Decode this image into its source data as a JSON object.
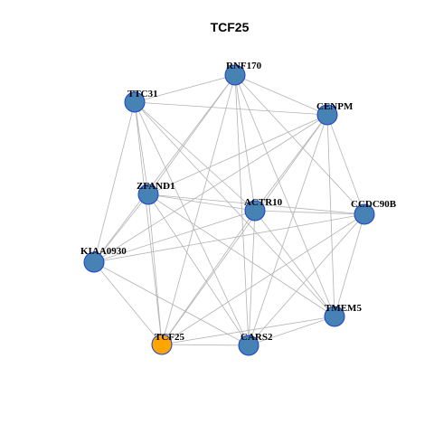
{
  "title": "TCF25",
  "style": {
    "edge_color": "#b3b3b3",
    "node_fill": "#4682b4",
    "node_border": "#1c3fcf",
    "highlight_fill": "#ffa500",
    "highlight_border": "#1c3fcf"
  },
  "nodes": [
    {
      "id": "RNF170",
      "label": "RNF170",
      "highlight": false
    },
    {
      "id": "TTC31",
      "label": "TTC31",
      "highlight": false
    },
    {
      "id": "CENPM",
      "label": "CENPM",
      "highlight": false
    },
    {
      "id": "ZFAND1",
      "label": "ZFAND1",
      "highlight": false
    },
    {
      "id": "ACTR10",
      "label": "ACTR10",
      "highlight": false
    },
    {
      "id": "CCDC90B",
      "label": "CCDC90B",
      "highlight": false
    },
    {
      "id": "KIAA0930",
      "label": "KIAA0930",
      "highlight": false
    },
    {
      "id": "TMEM5",
      "label": "TMEM5",
      "highlight": false
    },
    {
      "id": "TCF25",
      "label": "TCF25",
      "highlight": true
    },
    {
      "id": "CARS2",
      "label": "CARS2",
      "highlight": false
    }
  ],
  "edges": [
    [
      "RNF170",
      "TTC31"
    ],
    [
      "RNF170",
      "CENPM"
    ],
    [
      "RNF170",
      "ZFAND1"
    ],
    [
      "RNF170",
      "ACTR10"
    ],
    [
      "RNF170",
      "CCDC90B"
    ],
    [
      "RNF170",
      "KIAA0930"
    ],
    [
      "RNF170",
      "TMEM5"
    ],
    [
      "RNF170",
      "TCF25"
    ],
    [
      "RNF170",
      "CARS2"
    ],
    [
      "TTC31",
      "CENPM"
    ],
    [
      "TTC31",
      "ZFAND1"
    ],
    [
      "TTC31",
      "ACTR10"
    ],
    [
      "TTC31",
      "KIAA0930"
    ],
    [
      "TTC31",
      "TMEM5"
    ],
    [
      "TTC31",
      "TCF25"
    ],
    [
      "TTC31",
      "CARS2"
    ],
    [
      "CENPM",
      "ZFAND1"
    ],
    [
      "CENPM",
      "ACTR10"
    ],
    [
      "CENPM",
      "CCDC90B"
    ],
    [
      "CENPM",
      "KIAA0930"
    ],
    [
      "CENPM",
      "TMEM5"
    ],
    [
      "CENPM",
      "TCF25"
    ],
    [
      "CENPM",
      "CARS2"
    ],
    [
      "ZFAND1",
      "ACTR10"
    ],
    [
      "ZFAND1",
      "CCDC90B"
    ],
    [
      "ZFAND1",
      "KIAA0930"
    ],
    [
      "ZFAND1",
      "TMEM5"
    ],
    [
      "ZFAND1",
      "TCF25"
    ],
    [
      "ZFAND1",
      "CARS2"
    ],
    [
      "ACTR10",
      "CCDC90B"
    ],
    [
      "ACTR10",
      "KIAA0930"
    ],
    [
      "ACTR10",
      "TMEM5"
    ],
    [
      "ACTR10",
      "TCF25"
    ],
    [
      "ACTR10",
      "CARS2"
    ],
    [
      "CCDC90B",
      "KIAA0930"
    ],
    [
      "CCDC90B",
      "TMEM5"
    ],
    [
      "CCDC90B",
      "TCF25"
    ],
    [
      "CCDC90B",
      "CARS2"
    ],
    [
      "KIAA0930",
      "TCF25"
    ],
    [
      "KIAA0930",
      "CARS2"
    ],
    [
      "TMEM5",
      "TCF25"
    ],
    [
      "TMEM5",
      "CARS2"
    ],
    [
      "TCF25",
      "CARS2"
    ]
  ]
}
